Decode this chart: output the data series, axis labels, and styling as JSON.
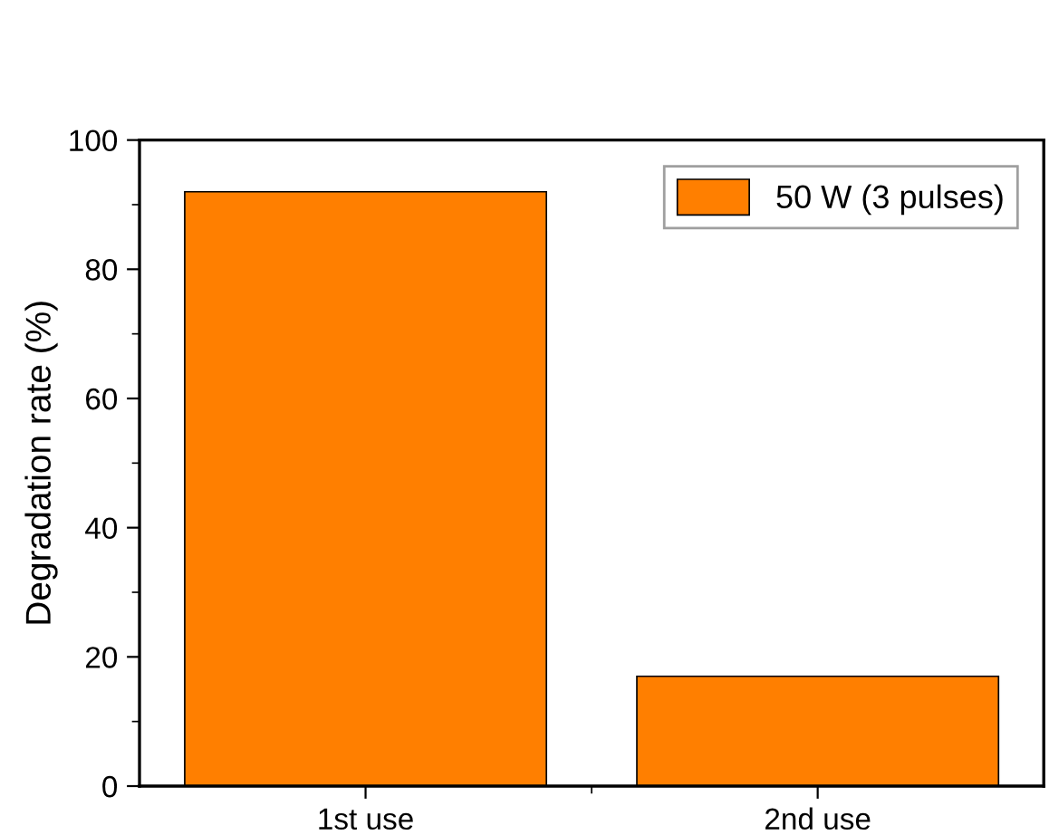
{
  "chart_data": {
    "type": "bar",
    "ylabel": "Degradation rate (%)",
    "categories": [
      "1st use",
      "2nd use"
    ],
    "series": [
      {
        "name": "50 W (3 pulses)",
        "color": "#ff7f00",
        "values": [
          92,
          17
        ]
      }
    ],
    "ylim": [
      0,
      100
    ],
    "yticks": [
      0,
      20,
      40,
      60,
      80,
      100
    ],
    "grid": false,
    "legend": "top right"
  }
}
